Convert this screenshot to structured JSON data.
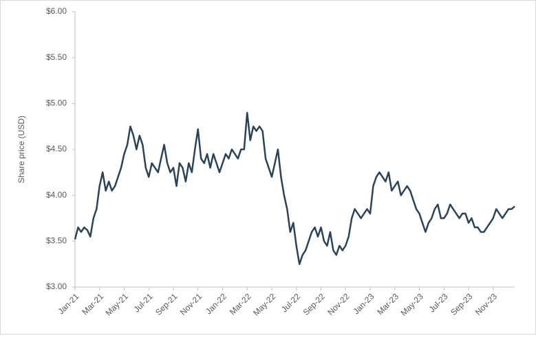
{
  "chart_data": {
    "type": "line",
    "y_label": "Share price (USD)",
    "color": "#2c4257",
    "categories": [
      "Jan-21",
      null,
      null,
      null,
      null,
      null,
      null,
      null,
      "Mar-21",
      null,
      null,
      null,
      null,
      null,
      null,
      null,
      "May-21",
      null,
      null,
      null,
      null,
      null,
      null,
      null,
      "Jul-21",
      null,
      null,
      null,
      null,
      null,
      null,
      null,
      "Sep-21",
      null,
      null,
      null,
      null,
      null,
      null,
      null,
      "Nov-21",
      null,
      null,
      null,
      null,
      null,
      null,
      null,
      "Jan-22",
      null,
      null,
      null,
      null,
      null,
      null,
      null,
      "Mar-22",
      null,
      null,
      null,
      null,
      null,
      null,
      null,
      "May-22",
      null,
      null,
      null,
      null,
      null,
      null,
      null,
      "Jul-22",
      null,
      null,
      null,
      null,
      null,
      null,
      null,
      "Sep-22",
      null,
      null,
      null,
      null,
      null,
      null,
      null,
      "Nov-22",
      null,
      null,
      null,
      null,
      null,
      null,
      null,
      "Jan-23",
      null,
      null,
      null,
      null,
      null,
      null,
      null,
      "Mar-23",
      null,
      null,
      null,
      null,
      null,
      null,
      null,
      "May-23",
      null,
      null,
      null,
      null,
      null,
      null,
      null,
      "Jul-23",
      null,
      null,
      null,
      null,
      null,
      null,
      null,
      "Sep-23",
      null,
      null,
      null,
      null,
      null,
      null,
      null,
      "Nov-23",
      null,
      null,
      null,
      null,
      null,
      null,
      null
    ],
    "values": [
      3.52,
      3.65,
      3.6,
      3.65,
      3.62,
      3.55,
      3.75,
      3.85,
      4.1,
      4.25,
      4.05,
      4.15,
      4.05,
      4.1,
      4.2,
      4.3,
      4.45,
      4.55,
      4.75,
      4.65,
      4.5,
      4.65,
      4.55,
      4.3,
      4.2,
      4.35,
      4.3,
      4.25,
      4.4,
      4.55,
      4.35,
      4.25,
      4.3,
      4.1,
      4.35,
      4.3,
      4.15,
      4.35,
      4.25,
      4.5,
      4.72,
      4.4,
      4.35,
      4.45,
      4.3,
      4.45,
      4.35,
      4.25,
      4.35,
      4.45,
      4.4,
      4.5,
      4.45,
      4.4,
      4.5,
      4.5,
      4.9,
      4.6,
      4.75,
      4.7,
      4.75,
      4.7,
      4.4,
      4.3,
      4.2,
      4.35,
      4.5,
      4.2,
      4.0,
      3.85,
      3.6,
      3.7,
      3.45,
      3.25,
      3.35,
      3.4,
      3.5,
      3.6,
      3.65,
      3.55,
      3.65,
      3.5,
      3.45,
      3.6,
      3.4,
      3.35,
      3.45,
      3.4,
      3.45,
      3.55,
      3.75,
      3.85,
      3.8,
      3.75,
      3.8,
      3.85,
      3.8,
      4.1,
      4.2,
      4.25,
      4.2,
      4.15,
      4.25,
      4.05,
      4.1,
      4.15,
      4.0,
      4.05,
      4.1,
      4.05,
      3.95,
      3.85,
      3.8,
      3.7,
      3.6,
      3.7,
      3.75,
      3.85,
      3.9,
      3.75,
      3.75,
      3.8,
      3.9,
      3.85,
      3.8,
      3.75,
      3.8,
      3.8,
      3.7,
      3.75,
      3.65,
      3.65,
      3.6,
      3.6,
      3.65,
      3.7,
      3.75,
      3.85,
      3.8,
      3.75,
      3.8,
      3.85,
      3.85,
      3.88
    ],
    "ylim": [
      3,
      6
    ],
    "yticks": [
      {
        "value": 3,
        "label": "$3.00"
      },
      {
        "value": 3.5,
        "label": "$3.50"
      },
      {
        "value": 4,
        "label": "$4.00"
      },
      {
        "value": 4.5,
        "label": "$4.50"
      },
      {
        "value": 5,
        "label": "$5.00"
      },
      {
        "value": 5.5,
        "label": "$5.50"
      },
      {
        "value": 6,
        "label": "$6.00"
      }
    ]
  }
}
